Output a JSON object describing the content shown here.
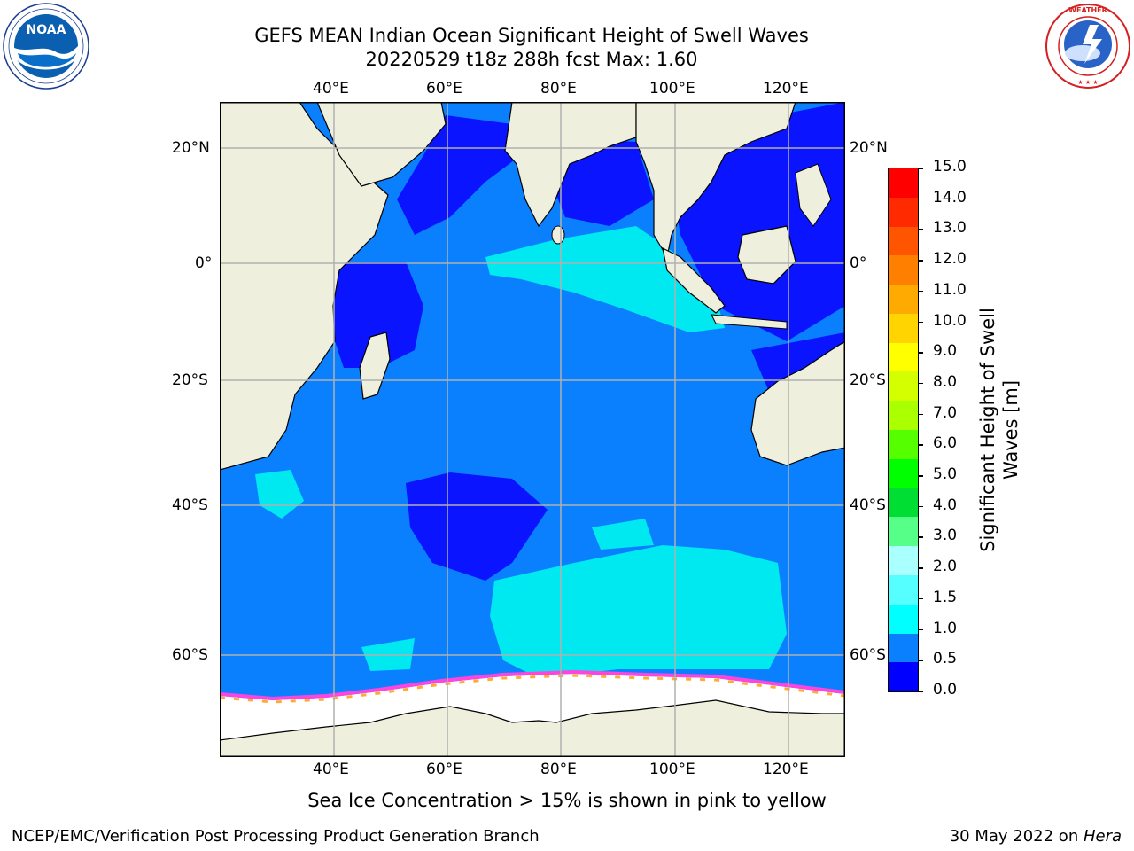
{
  "header": {
    "title_line1": "GEFS MEAN Indian Ocean Significant Height of Swell Waves",
    "title_line2": "20220529 t18z 288h fcst   Max: 1.60"
  },
  "logos": {
    "noaa_text": "NOAA",
    "noaa_ring_text": "NATIONAL OCEANIC AND ATMOSPHERIC ADMINISTRATION · U.S. DEPARTMENT OF COMMERCE",
    "nws_ring_text": "NATIONAL WEATHER SERVICE"
  },
  "map": {
    "x_labels": [
      "40°E",
      "60°E",
      "80°E",
      "100°E",
      "120°E"
    ],
    "y_labels": [
      "20°N",
      "0°",
      "20°S",
      "40°S",
      "60°S"
    ],
    "colors": {
      "land": "#efefde",
      "ocean_0_05": "#0a14ff",
      "ocean_05_1": "#0a80ff",
      "ocean_1_15": "#00e8f0",
      "ice": "#ffffff",
      "grid": "#b0b0b0"
    }
  },
  "colorbar": {
    "label_line1": "Significant Height of Swell",
    "label_line2": "Waves [m]",
    "ticks": [
      "15.0",
      "14.0",
      "13.0",
      "12.0",
      "11.0",
      "10.0",
      "9.0",
      "8.0",
      "7.0",
      "6.0",
      "5.0",
      "4.0",
      "3.0",
      "2.0",
      "1.5",
      "1.0",
      "0.5",
      "0.0"
    ],
    "colors_top_to_bottom": [
      "#ff0000",
      "#ff2a00",
      "#ff5500",
      "#ff7f00",
      "#ffaa00",
      "#ffd400",
      "#ffff00",
      "#d4ff00",
      "#aaff00",
      "#55ff00",
      "#00ff00",
      "#00dd33",
      "#55ff88",
      "#aaffff",
      "#55ffff",
      "#00ffff",
      "#0a80ff",
      "#0000ff"
    ]
  },
  "sea_ice_note": "Sea Ice Concentration > 15% is shown in pink to yellow",
  "footer": {
    "left": "NCEP/EMC/Verification Post Processing Product Generation Branch",
    "right_date": "30 May 2022 on ",
    "right_host": "Hera"
  }
}
